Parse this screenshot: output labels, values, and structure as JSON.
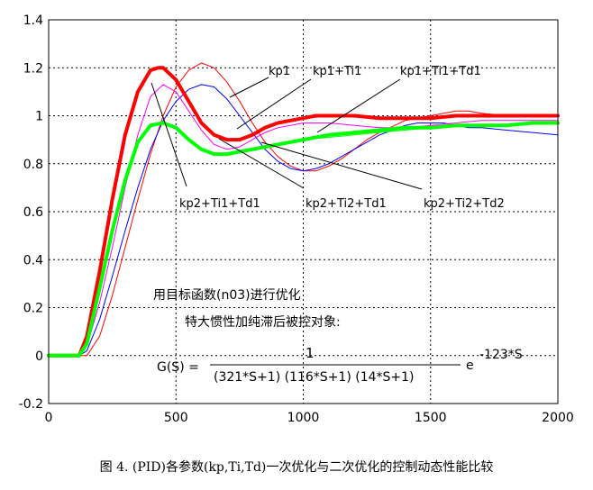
{
  "chart_data": {
    "type": "line",
    "xlim": [
      0,
      2000
    ],
    "ylim": [
      -0.2,
      1.4
    ],
    "x_ticks": [
      0,
      500,
      1000,
      1500,
      2000
    ],
    "y_ticks": [
      -0.2,
      0,
      0.2,
      0.4,
      0.6,
      0.8,
      1,
      1.2,
      1.4
    ],
    "x_tick_labels": [
      "0",
      "500",
      "1000",
      "1500",
      "2000"
    ],
    "y_tick_labels": [
      "-0.2",
      "0",
      "0.2",
      "0.4",
      "0.6",
      "0.8",
      "1",
      "1.2",
      "1.4"
    ],
    "grid": true,
    "series": [
      {
        "name": "kp1",
        "color": "#ff0000",
        "width": 1,
        "x": [
          0,
          120,
          150,
          200,
          250,
          300,
          350,
          400,
          450,
          500,
          550,
          600,
          650,
          700,
          750,
          800,
          850,
          900,
          950,
          1000,
          1050,
          1100,
          1150,
          1200,
          1250,
          1300,
          1400,
          1500,
          1600,
          1650,
          1700,
          1800,
          1900,
          2000
        ],
        "y": [
          0,
          0,
          0,
          0.08,
          0.25,
          0.45,
          0.65,
          0.84,
          1.0,
          1.12,
          1.19,
          1.22,
          1.2,
          1.14,
          1.06,
          0.97,
          0.89,
          0.83,
          0.79,
          0.77,
          0.77,
          0.79,
          0.82,
          0.86,
          0.9,
          0.93,
          0.98,
          1.0,
          1.02,
          1.02,
          1.01,
          1.0,
          1.0,
          1.0
        ]
      },
      {
        "name": "kp1+Ti1",
        "color": "#0000ff",
        "width": 1,
        "x": [
          0,
          120,
          150,
          200,
          250,
          300,
          350,
          400,
          450,
          500,
          550,
          600,
          650,
          700,
          750,
          800,
          850,
          900,
          950,
          1000,
          1050,
          1100,
          1150,
          1200,
          1250,
          1300,
          1350,
          1400,
          1450,
          1500,
          1550,
          1600,
          1650,
          1700,
          1800,
          1900,
          2000
        ],
        "y": [
          0,
          0,
          0.02,
          0.15,
          0.33,
          0.52,
          0.7,
          0.86,
          0.98,
          1.06,
          1.11,
          1.13,
          1.12,
          1.07,
          1.0,
          0.93,
          0.86,
          0.81,
          0.78,
          0.77,
          0.78,
          0.8,
          0.83,
          0.86,
          0.89,
          0.92,
          0.94,
          0.96,
          0.97,
          0.97,
          0.97,
          0.96,
          0.95,
          0.95,
          0.94,
          0.93,
          0.92
        ]
      },
      {
        "name": "kp1+Ti1+Td1",
        "color": "#ff00ff",
        "width": 1,
        "x": [
          0,
          120,
          150,
          200,
          250,
          300,
          350,
          400,
          450,
          500,
          550,
          600,
          650,
          700,
          750,
          800,
          850,
          900,
          950,
          1000,
          1050,
          1100,
          1200,
          1300,
          1400,
          1500,
          1600,
          1700,
          1800,
          1900,
          2000
        ],
        "y": [
          0,
          0,
          0.04,
          0.22,
          0.45,
          0.7,
          0.92,
          1.08,
          1.13,
          1.1,
          1.02,
          0.94,
          0.88,
          0.86,
          0.87,
          0.9,
          0.93,
          0.95,
          0.96,
          0.97,
          0.97,
          0.97,
          0.96,
          0.95,
          0.95,
          0.96,
          0.97,
          0.98,
          0.98,
          0.98,
          0.98
        ]
      },
      {
        "name": "kp2+Ti1+Td1",
        "color": "#ff0000",
        "width": 4,
        "x": [
          0,
          120,
          150,
          200,
          250,
          300,
          350,
          400,
          430,
          450,
          500,
          550,
          600,
          650,
          700,
          750,
          800,
          850,
          900,
          950,
          1000,
          1050,
          1100,
          1200,
          1300,
          1400,
          1500,
          1600,
          1700,
          1800,
          1900,
          2000
        ],
        "y": [
          0,
          0,
          0.08,
          0.35,
          0.65,
          0.92,
          1.1,
          1.19,
          1.2,
          1.2,
          1.15,
          1.06,
          0.97,
          0.92,
          0.9,
          0.9,
          0.92,
          0.95,
          0.97,
          0.98,
          0.99,
          1.0,
          1.0,
          1.0,
          0.99,
          0.99,
          0.99,
          1.0,
          1.0,
          1.0,
          1.0,
          1.0
        ]
      },
      {
        "name": "kp2+Ti2+Td1",
        "color": "#00ff00",
        "width": 4,
        "x": [
          0,
          120,
          150,
          200,
          250,
          300,
          350,
          400,
          450,
          500,
          550,
          600,
          650,
          700,
          750,
          800,
          850,
          900,
          950,
          1000,
          1100,
          1200,
          1300,
          1400,
          1500,
          1600,
          1700,
          1800,
          1900,
          2000
        ],
        "y": [
          0,
          0,
          0.05,
          0.28,
          0.52,
          0.73,
          0.89,
          0.96,
          0.97,
          0.95,
          0.9,
          0.86,
          0.84,
          0.84,
          0.85,
          0.86,
          0.87,
          0.88,
          0.89,
          0.9,
          0.92,
          0.93,
          0.94,
          0.95,
          0.95,
          0.96,
          0.96,
          0.96,
          0.97,
          0.97
        ]
      },
      {
        "name": "kp2+Ti2+Td2",
        "color": "#00ff00",
        "width": 1,
        "x": [
          1000,
          1500,
          2000
        ],
        "y": [
          0.9,
          0.95,
          0.97
        ]
      }
    ],
    "series_labels": {
      "kp1": "kp1",
      "kp1_ti1": "kp1+Ti1",
      "kp1_ti1_td1": "kp1+Ti1+Td1",
      "kp2_ti1_td1": "kp2+Ti1+Td1",
      "kp2_ti2_td1": "kp2+Ti2+Td1",
      "kp2_ti2_td2": "kp2+Ti2+Td2"
    },
    "annotations": {
      "optimize_text": "用目标函数(n03)进行优化",
      "plant_text": "特大惯性加纯滞后被控对象:",
      "formula_lhs": "G(S) =",
      "formula_numerator": "1",
      "formula_denominator": "(321*S+1) (116*S+1) (14*S+1)",
      "formula_exp_base": "e",
      "formula_exponent": "-123*S"
    }
  },
  "caption": "图 4. (PID)各参数(kp,Ti,Td)一次优化与二次优化的控制动态性能比较"
}
